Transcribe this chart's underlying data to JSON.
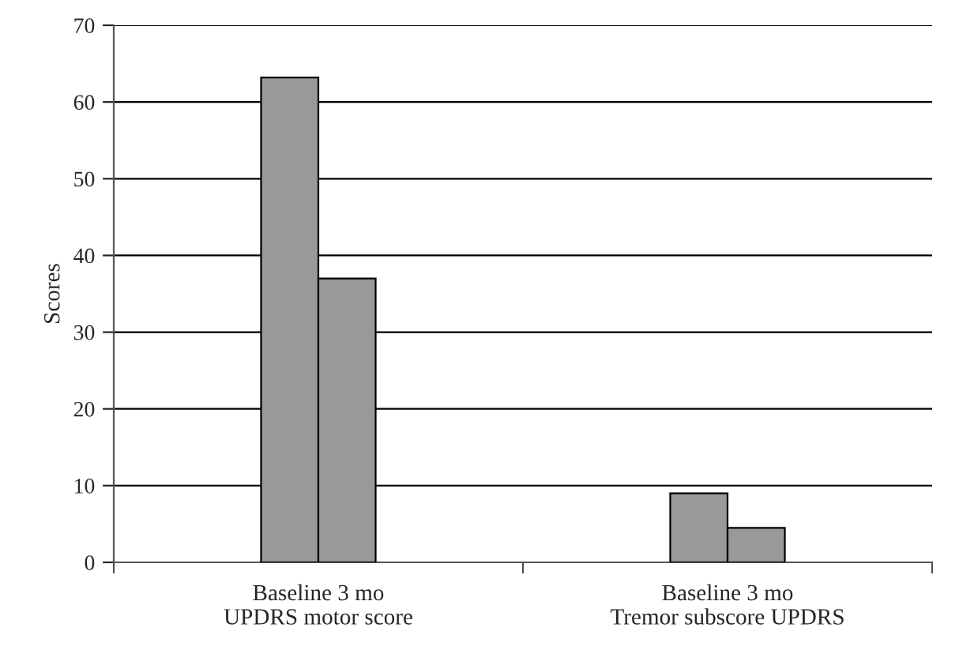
{
  "chart_data": {
    "type": "bar",
    "ylabel": "Scores",
    "categories": [
      "Baseline 3 mo\nUPDRS motor score",
      "Baseline 3 mo\nTremor subscore UPDRS"
    ],
    "series": [
      {
        "color": "#999999",
        "values": [
          63.2,
          9
        ]
      },
      {
        "color": "#999999",
        "values": [
          37,
          4.5
        ]
      }
    ],
    "ylim": [
      0,
      70
    ],
    "yticks": [
      0,
      10,
      20,
      30,
      40,
      50,
      60,
      70
    ],
    "grid": "y",
    "legend": false
  }
}
